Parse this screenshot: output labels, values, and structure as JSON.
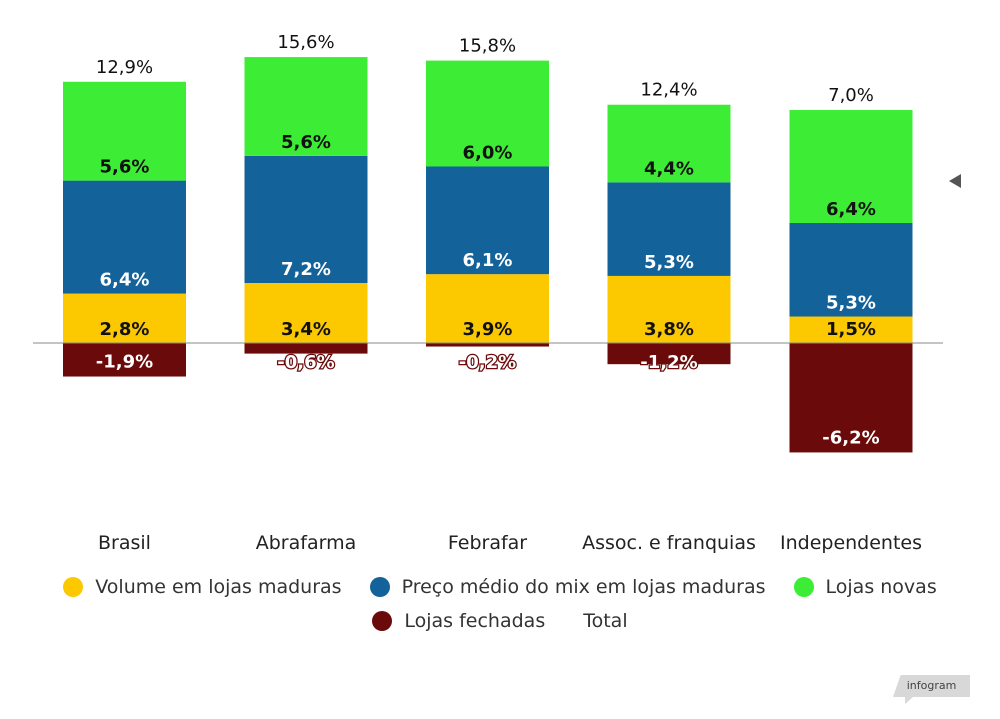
{
  "chart_data": {
    "type": "bar",
    "stacked": true,
    "categories": [
      "Brasil",
      "Abrafarma",
      "Febrafar",
      "Assoc. e franquias",
      "Independentes"
    ],
    "series": [
      {
        "name": "Volume em lojas maduras",
        "color": "#fcc800",
        "values": [
          2.8,
          3.4,
          3.9,
          3.8,
          1.5
        ],
        "labels": [
          "2,8%",
          "3,4%",
          "3,9%",
          "3,8%",
          "1,5%"
        ]
      },
      {
        "name": "Preço médio do mix em lojas maduras",
        "color": "#14629a",
        "values": [
          6.4,
          7.2,
          6.1,
          5.3,
          5.3
        ],
        "labels": [
          "6,4%",
          "7,2%",
          "6,1%",
          "5,3%",
          "5,3%"
        ]
      },
      {
        "name": "Lojas novas",
        "color": "#3ded35",
        "values": [
          5.6,
          5.6,
          6.0,
          4.4,
          6.4
        ],
        "labels": [
          "5,6%",
          "5,6%",
          "6,0%",
          "4,4%",
          "6,4%"
        ]
      },
      {
        "name": "Lojas fechadas",
        "color": "#6b0a0a",
        "values": [
          -1.9,
          -0.6,
          -0.2,
          -1.2,
          -6.2
        ],
        "labels": [
          "-1,9%",
          "-0,6%",
          "-0,2%",
          "-1,2%",
          "-6,2%"
        ]
      }
    ],
    "total": {
      "name": "Total",
      "values": [
        12.9,
        15.6,
        15.8,
        12.4,
        7.0
      ],
      "labels": [
        "12,9%",
        "15,6%",
        "15,8%",
        "12,4%",
        "7,0%"
      ]
    },
    "legend_position": "bottom",
    "grid": false
  },
  "branding": {
    "badge_text": "infogram"
  }
}
